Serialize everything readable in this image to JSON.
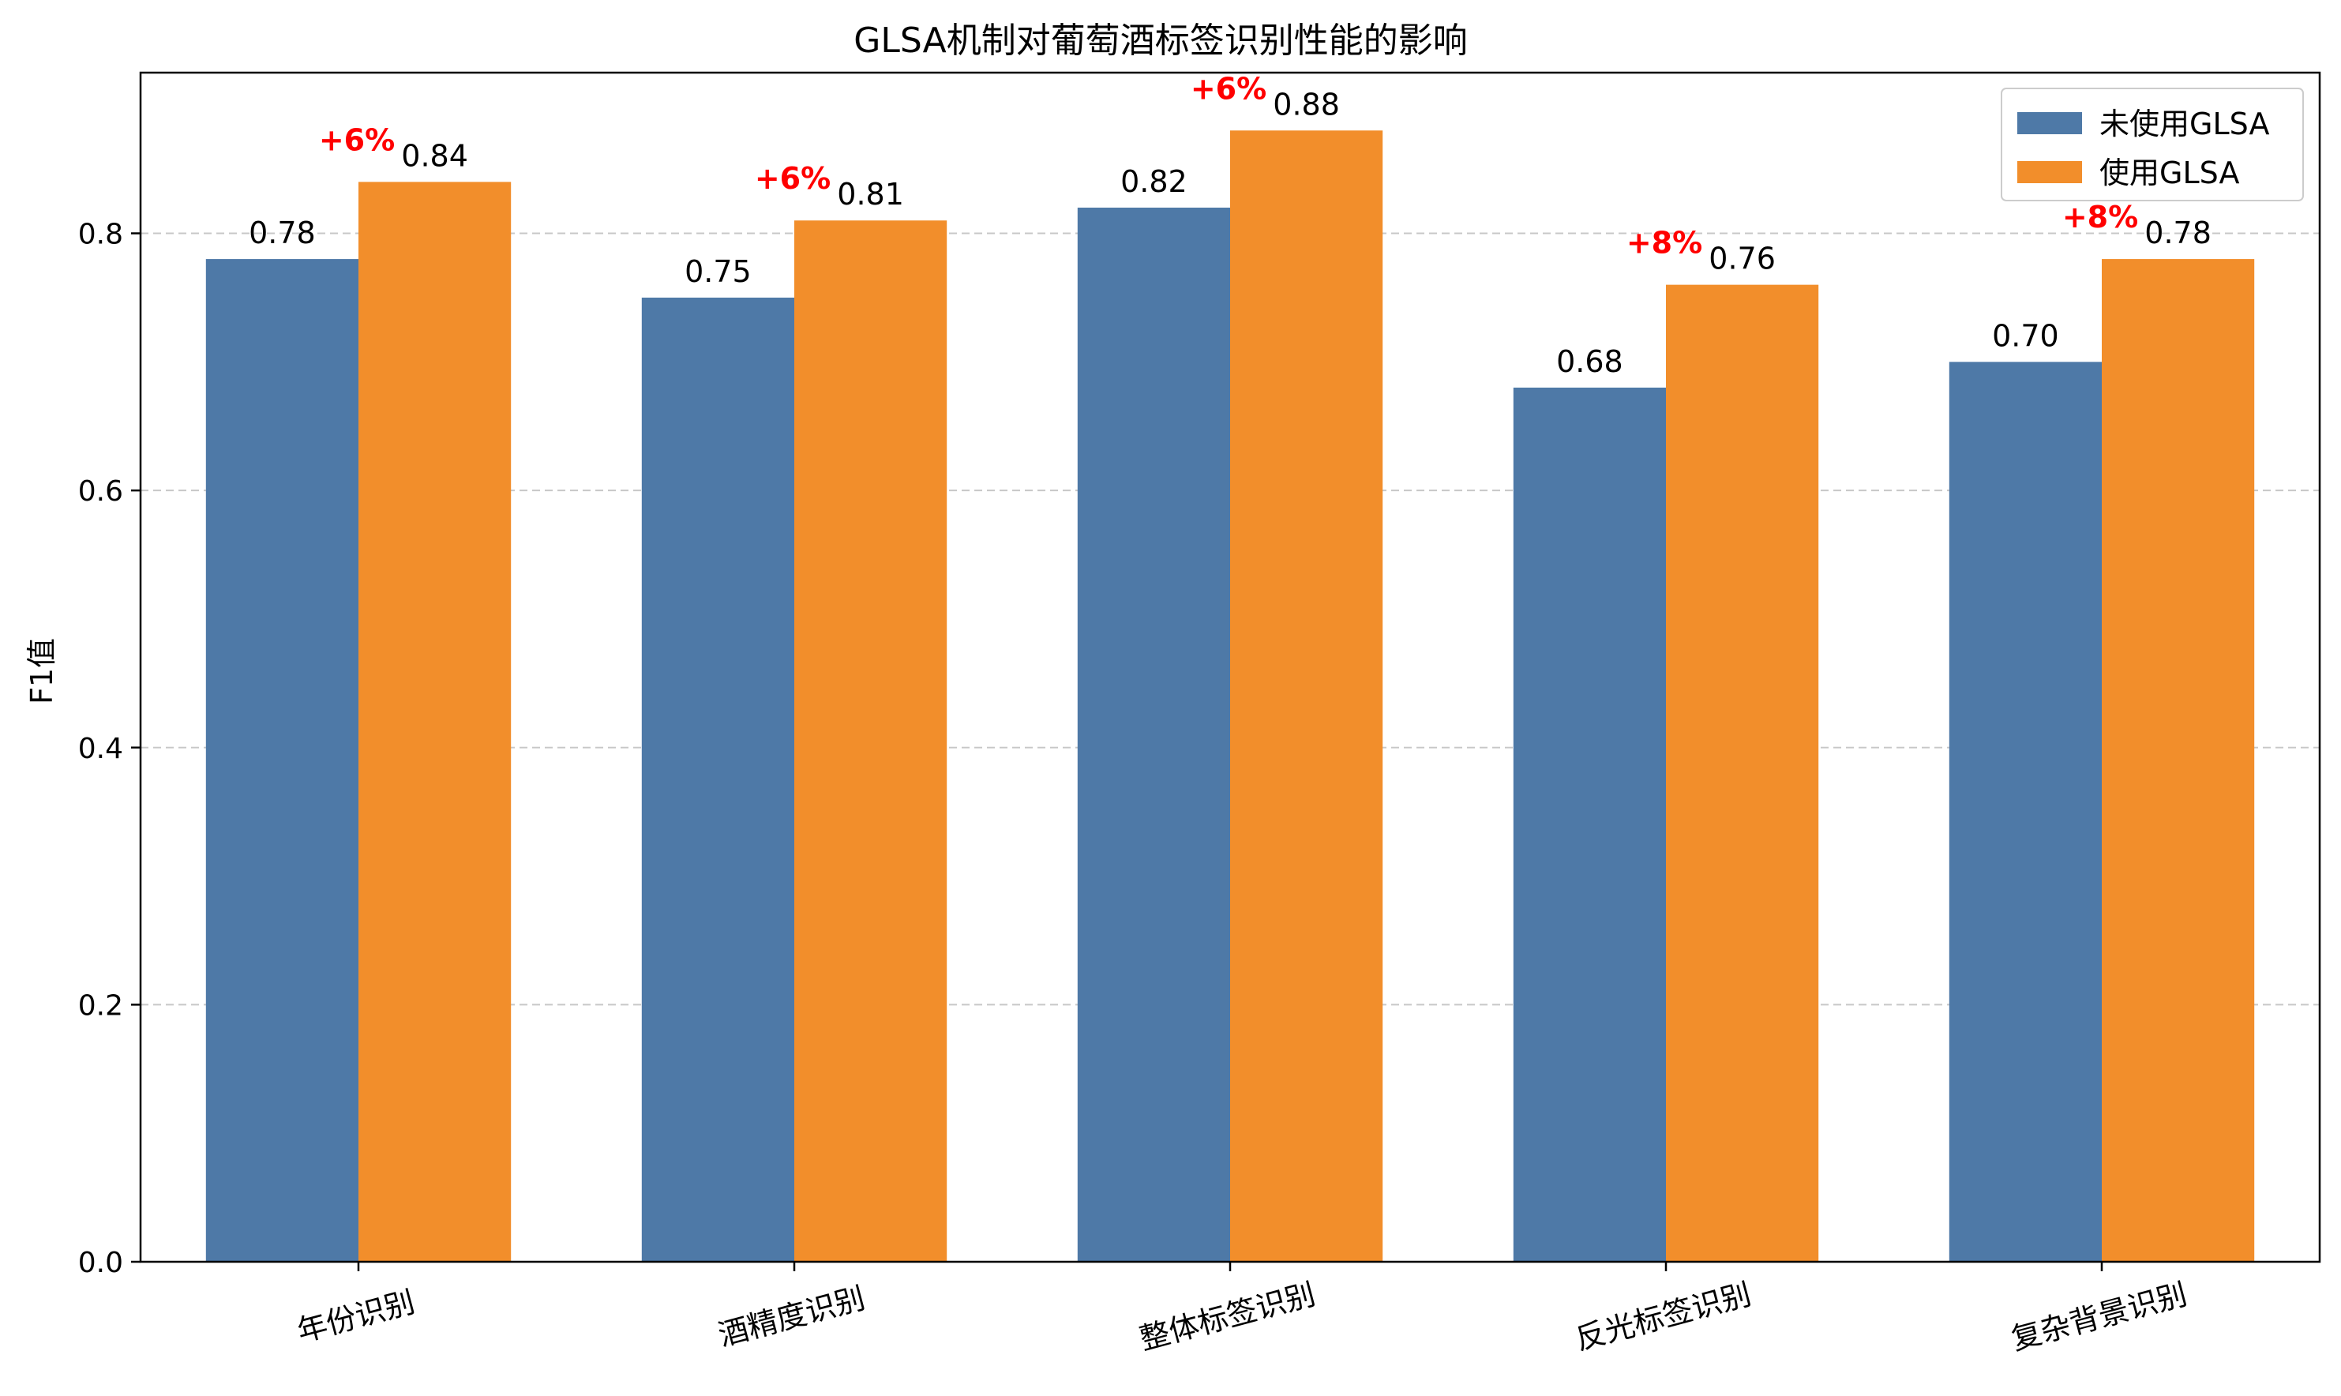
{
  "chart_data": {
    "type": "bar",
    "title": "GLSA机制对葡萄酒标签识别性能的影响",
    "xlabel": "",
    "ylabel": "F1值",
    "ylim": [
      0,
      0.925
    ],
    "yticks": [
      "0.0",
      "0.2",
      "0.4",
      "0.6",
      "0.8"
    ],
    "grid": true,
    "legend_position": "top-right",
    "categories": [
      "年份识别",
      "酒精度识别",
      "整体标签识别",
      "反光标签识别",
      "复杂背景识别"
    ],
    "series": [
      {
        "name": "未使用GLSA",
        "color": "#4e79a7",
        "values": [
          0.78,
          0.75,
          0.82,
          0.68,
          0.7
        ],
        "labels": [
          "0.78",
          "0.75",
          "0.82",
          "0.68",
          "0.70"
        ]
      },
      {
        "name": "使用GLSA",
        "color": "#f28e2b",
        "values": [
          0.84,
          0.81,
          0.88,
          0.76,
          0.78
        ],
        "labels": [
          "0.84",
          "0.81",
          "0.88",
          "0.76",
          "0.78"
        ]
      }
    ],
    "annotations": [
      "+6%",
      "+6%",
      "+6%",
      "+8%",
      "+8%"
    ],
    "annotation_color": "#ff0000"
  }
}
